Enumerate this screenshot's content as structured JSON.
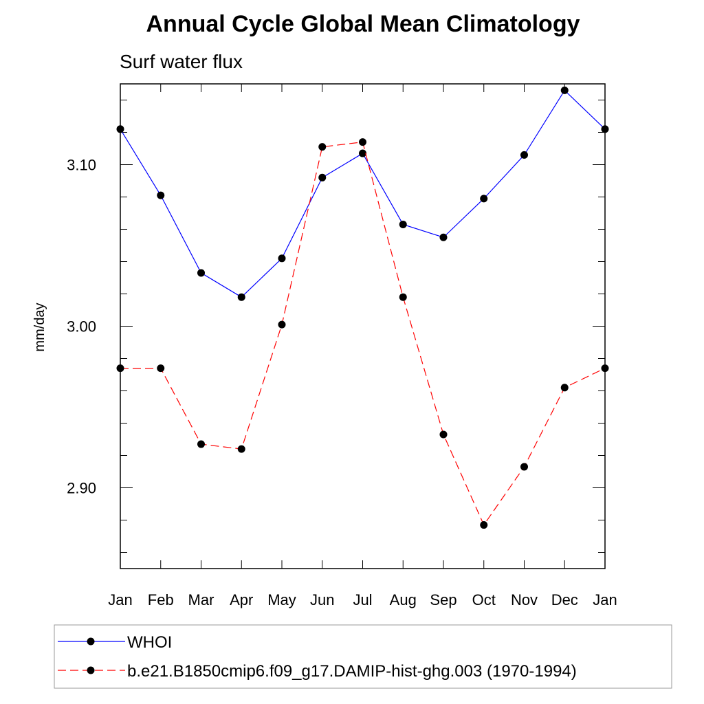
{
  "chart_data": {
    "type": "line",
    "title": "Annual Cycle Global Mean Climatology",
    "subtitle": "Surf water flux",
    "xlabel": "",
    "ylabel": "mm/day",
    "categories": [
      "Jan",
      "Feb",
      "Mar",
      "Apr",
      "May",
      "Jun",
      "Jul",
      "Aug",
      "Sep",
      "Oct",
      "Nov",
      "Dec",
      "Jan"
    ],
    "ylim": [
      2.85,
      3.15
    ],
    "yticks": [
      "3.10",
      "3.00",
      "2.90"
    ],
    "ytick_values": [
      3.1,
      3.0,
      2.9
    ],
    "grid": false,
    "legend_position": "bottom",
    "series": [
      {
        "name": "WHOI",
        "color": "#0000ff",
        "line_style": "solid",
        "marker": "filled-circle",
        "values": [
          3.122,
          3.081,
          3.033,
          3.018,
          3.042,
          3.092,
          3.107,
          3.063,
          3.055,
          3.079,
          3.106,
          3.146,
          3.122
        ]
      },
      {
        "name": "b.e21.B1850cmip6.f09_g17.DAMIP-hist-ghg.003 (1970-1994)",
        "color": "#ff0000",
        "line_style": "dashed",
        "marker": "filled-circle",
        "values": [
          2.974,
          2.974,
          2.927,
          2.924,
          3.001,
          3.111,
          3.114,
          3.018,
          2.933,
          2.877,
          2.913,
          2.962,
          2.974
        ]
      }
    ]
  }
}
